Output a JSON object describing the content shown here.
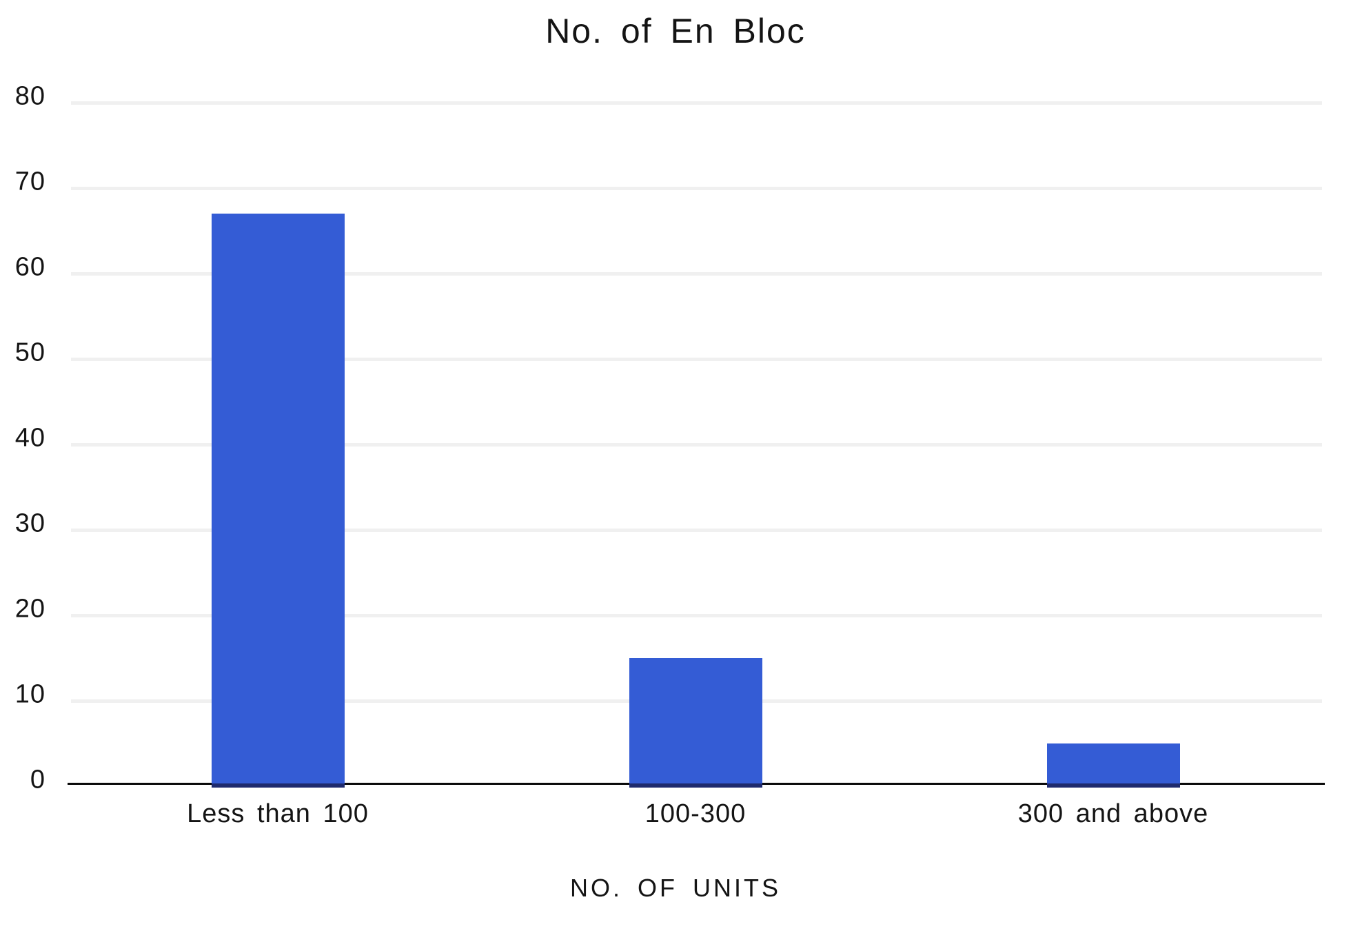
{
  "chart_data": {
    "type": "bar",
    "title": "No. of En Bloc",
    "xlabel": "NO. OF UNITS",
    "ylabel": "",
    "categories": [
      "Less than 100",
      "100-300",
      "300 and above"
    ],
    "values": [
      67,
      15,
      5
    ],
    "yticks": [
      0,
      10,
      20,
      30,
      40,
      50,
      60,
      70,
      80
    ],
    "ylim": [
      0,
      80
    ],
    "grid": true,
    "legend": false,
    "colors": {
      "bar": "#345CD5",
      "bar_bottom_edge": "#1e2a6e",
      "gridline": "#f0f0f0",
      "axis_line": "#0a0a0a",
      "text": "#141414",
      "background": "#ffffff"
    }
  }
}
